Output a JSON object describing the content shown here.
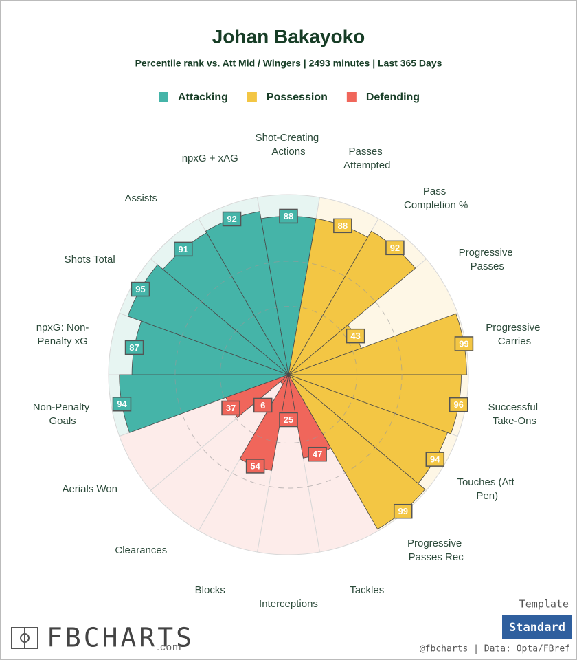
{
  "chart_data": {
    "type": "pizza",
    "title": "Johan Bakayoko",
    "subtitle": "Percentile rank vs. Att Mid / Wingers | 2493 minutes | Last 365 Days",
    "rlim": [
      0,
      100
    ],
    "series": [
      {
        "name": "Attacking",
        "color": "#45b4a8",
        "background": "#e7f5f2",
        "categories": [
          "Non-Penalty Goals",
          "npxG: Non-Penalty xG",
          "Shots Total",
          "Assists",
          "npxG + xAG",
          "Shot-Creating Actions"
        ],
        "values": [
          94,
          87,
          95,
          91,
          92,
          88
        ]
      },
      {
        "name": "Possession",
        "color": "#f3c644",
        "background": "#fef7e6",
        "categories": [
          "Passes Attempted",
          "Pass Completion %",
          "Progressive Passes",
          "Progressive Carries",
          "Successful Take-Ons",
          "Touches (Att Pen)",
          "Progressive Passes Rec"
        ],
        "values": [
          88,
          92,
          43,
          99,
          96,
          94,
          99
        ]
      },
      {
        "name": "Defending",
        "color": "#f0665b",
        "background": "#fdecea",
        "categories": [
          "Tackles",
          "Interceptions",
          "Blocks",
          "Clearances",
          "Aerials Won"
        ],
        "values": [
          47,
          25,
          54,
          6,
          37
        ]
      }
    ]
  },
  "footer": {
    "template_label": "Template",
    "template": "Standard",
    "credit": "@fbcharts | Data: Opta/FBref",
    "logo": "FBCHARTS",
    "logo_suffix": ".com"
  }
}
